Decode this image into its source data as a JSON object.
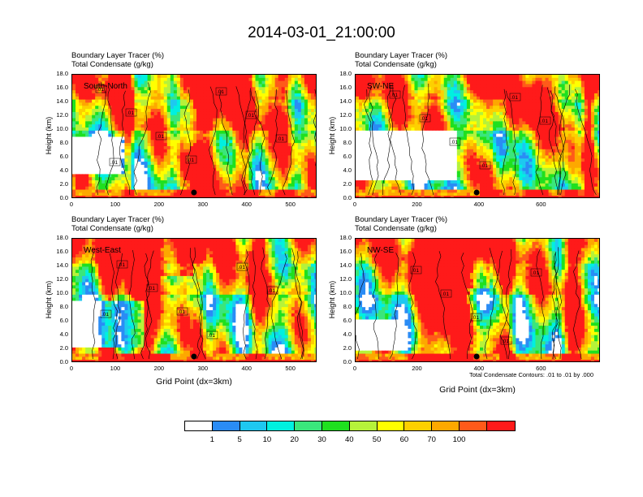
{
  "title": "2014-03-01_21:00:00",
  "colorbar": {
    "colors": [
      "#ffffff",
      "#2a8cf5",
      "#1ec8f0",
      "#00f0e0",
      "#3ae67c",
      "#1fe01f",
      "#b6f23a",
      "#ffff00",
      "#fdd000",
      "#fda800",
      "#ff5a1a",
      "#ff1a1a"
    ],
    "labels": [
      "1",
      "5",
      "10",
      "20",
      "30",
      "40",
      "50",
      "60",
      "70",
      "100"
    ]
  },
  "contour_note": "Total Condensate Contours: .01 to .01 by .000",
  "x_axis_label": "Grid Point (dx=3km)",
  "chart_data": [
    {
      "type": "heatmap",
      "name": "South-North",
      "header": [
        "Boundary Layer Tracer (%)",
        "Total Condensate (g/kg)"
      ],
      "ylabel": "Height (km)",
      "xticks": [
        "0",
        "100",
        "200",
        "300",
        "400",
        "500"
      ],
      "xlim": [
        0,
        560
      ],
      "ylim": [
        0,
        18
      ],
      "yticks": [
        "0.0",
        "2.0",
        "4.0",
        "6.0",
        "8.0",
        "10.0",
        "12.0",
        "14.0",
        "16.0",
        "18.0"
      ],
      "contour_labels": [
        ".01",
        ".01",
        ".01",
        ".01",
        ".01",
        ".01",
        ".01",
        ".01"
      ],
      "marker_x": 278
    },
    {
      "type": "heatmap",
      "name": "SW-NE",
      "header": [
        "Boundary Layer Tracer (%)",
        "Total Condensate (g/kg)"
      ],
      "ylabel": "Height (km)",
      "xticks": [
        "0",
        "200",
        "400",
        "600"
      ],
      "xlim": [
        0,
        790
      ],
      "ylim": [
        0,
        18
      ],
      "yticks": [
        "0.0",
        "2.0",
        "4.0",
        "6.0",
        "8.0",
        "10.0",
        "12.0",
        "14.0",
        "16.0",
        "18.0"
      ],
      "contour_labels": [
        ".01",
        ".01",
        ".01",
        ".01",
        ".01",
        ".01"
      ],
      "marker_x": 390
    },
    {
      "type": "heatmap",
      "name": "West-East",
      "header": [
        "Boundary Layer Tracer (%)",
        "Total Condensate (g/kg)"
      ],
      "ylabel": "Height (km)",
      "xticks": [
        "0",
        "100",
        "200",
        "300",
        "400",
        "500"
      ],
      "xlim": [
        0,
        560
      ],
      "ylim": [
        0,
        18
      ],
      "yticks": [
        "0.0",
        "2.0",
        "4.0",
        "6.0",
        "8.0",
        "10.0",
        "12.0",
        "14.0",
        "16.0",
        "18.0"
      ],
      "contour_labels": [
        ".01",
        ".01",
        ".01",
        ".01",
        ".01",
        ".01",
        ".01"
      ],
      "marker_x": 278
    },
    {
      "type": "heatmap",
      "name": "NW-SE",
      "header": [
        "Boundary Layer Tracer (%)",
        "Total Condensate (g/kg)"
      ],
      "ylabel": "Height (km)",
      "xticks": [
        "0",
        "200",
        "400",
        "600"
      ],
      "xlim": [
        0,
        790
      ],
      "ylim": [
        0,
        18
      ],
      "yticks": [
        "0.0",
        "2.0",
        "4.0",
        "6.0",
        "8.0",
        "10.0",
        "12.0",
        "14.0",
        "16.0",
        "18.0"
      ],
      "contour_labels": [
        ".01",
        ".01",
        ".01",
        ".01",
        ".01"
      ],
      "marker_x": 390
    }
  ]
}
